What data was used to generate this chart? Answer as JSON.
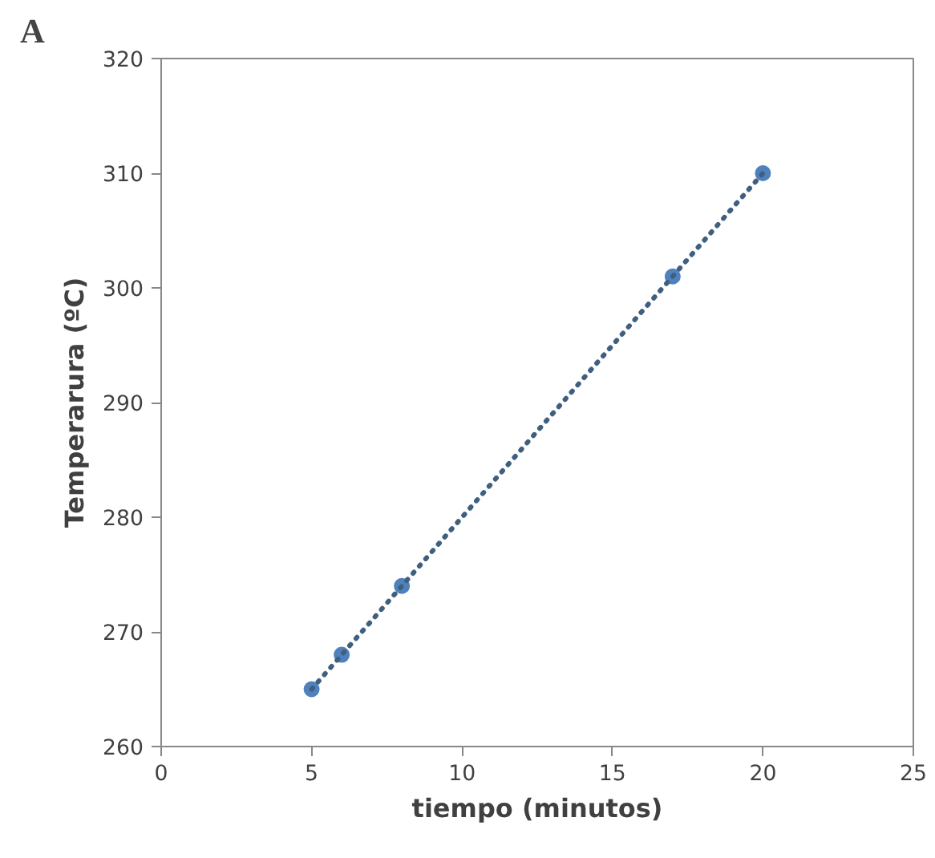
{
  "chart_data": {
    "type": "scatter",
    "xlabel": "tiempo (minutos)",
    "ylabel": "Temperarura (ºC)",
    "annotations": [
      "A"
    ],
    "xlim": [
      0,
      25
    ],
    "xticks": [
      0,
      5,
      10,
      15,
      20,
      25
    ],
    "ylim": [
      260,
      320
    ],
    "yticks": [
      260,
      270,
      280,
      290,
      300,
      310,
      320
    ],
    "grid": false,
    "marker": "circle",
    "series": [
      {
        "color": "#4f81bd",
        "x": [
          5,
          6,
          8,
          17,
          20
        ],
        "values": [
          265,
          268,
          274,
          301,
          310
        ]
      },
      {
        "type": "line",
        "color": "#3f5f80",
        "line_style": "dotted",
        "marker": "none",
        "x": [
          5,
          20
        ],
        "values": [
          265,
          310
        ]
      }
    ]
  }
}
